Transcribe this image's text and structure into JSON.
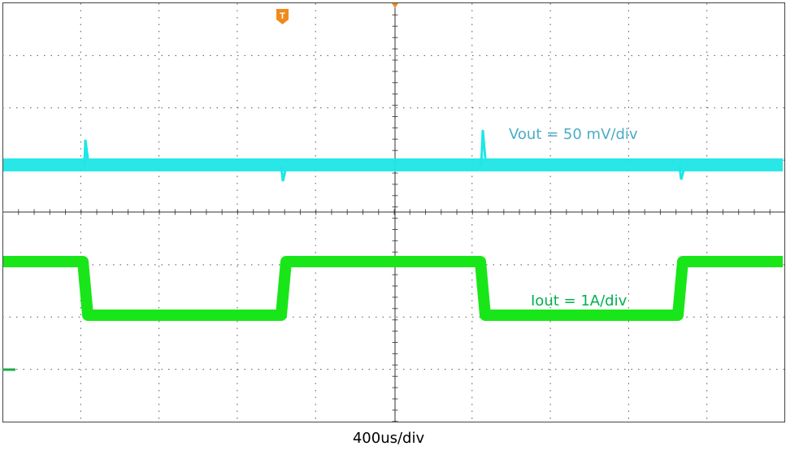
{
  "scope": {
    "vout_label": "Vout = 50 mV/div",
    "iout_label": "Iout = 1A/div",
    "trigger_marker": "T"
  },
  "time_label": "400us/div"
}
